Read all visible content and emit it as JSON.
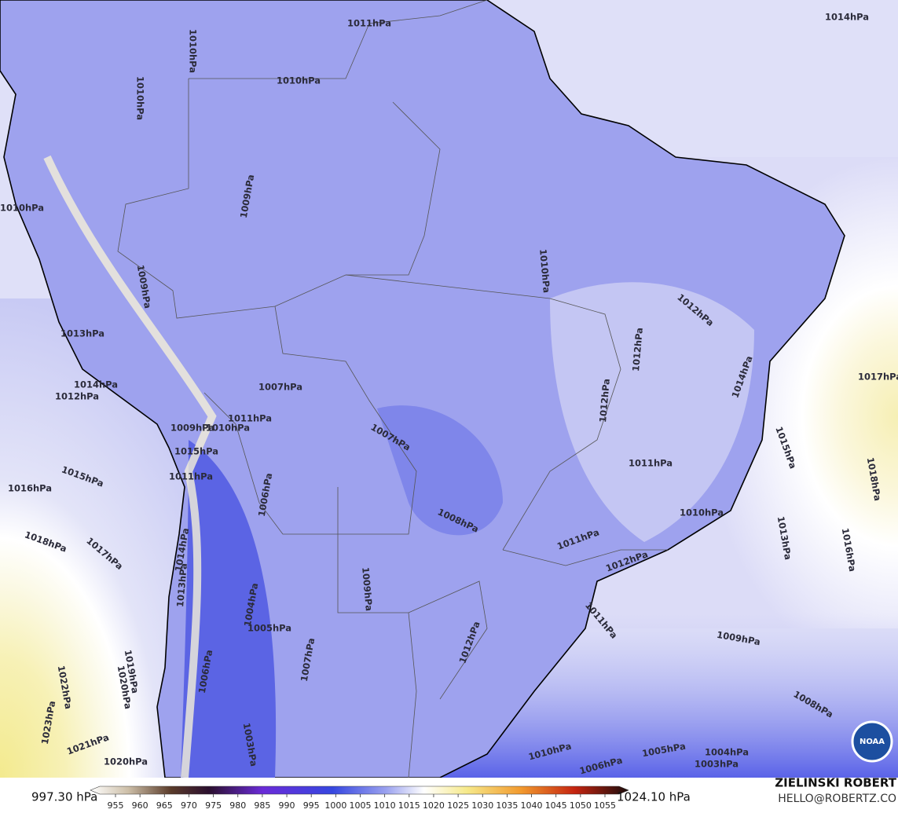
{
  "map": {
    "isobar_labels": [
      "1014hPa",
      "1011hPa",
      "1010hPa",
      "1010hPa",
      "1010hPa",
      "1009hPa",
      "1010hPa",
      "1009hPa",
      "1010hPa",
      "1012hPa",
      "1012hPa",
      "1014hPa",
      "1017hPa",
      "1012hPa",
      "1013hPa",
      "1014hPa",
      "1012hPa",
      "1007hPa",
      "1011hPa",
      "1010hPa",
      "1009hPa",
      "1007hPa",
      "1015hPa",
      "1015hPa",
      "1016hPa",
      "1011hPa",
      "1006hPa",
      "1011hPa",
      "1015hPa",
      "1018hPa",
      "1008hPa",
      "1010hPa",
      "1013hPa",
      "1016hPa",
      "1018hPa",
      "1017hPa",
      "1014hPa",
      "1011hPa",
      "1012hPa",
      "1013hPa",
      "1009hPa",
      "1004hPa",
      "1005hPa",
      "1011hPa",
      "1009hPa",
      "1012hPa",
      "1007hPa",
      "1019hPa",
      "1020hPa",
      "1022hPa",
      "1023hPa",
      "1006hPa",
      "1008hPa",
      "1021hPa",
      "1020hPa",
      "1003hPa",
      "1010hPa",
      "1005hPa",
      "1004hPa",
      "1003hPa",
      "1006hPa"
    ],
    "colorbar": {
      "min_label": "997.30 hPa",
      "max_label": "1024.10 hPa",
      "ticks": [
        955,
        960,
        965,
        970,
        975,
        980,
        985,
        990,
        995,
        1000,
        1005,
        1010,
        1015,
        1020,
        1025,
        1030,
        1035,
        1040,
        1045,
        1050,
        1055
      ]
    },
    "credit": {
      "author": "ZIELINSKI ROBERT",
      "contact": "HELLO@ROBERTZ.CO"
    },
    "logo": "NOAA"
  }
}
